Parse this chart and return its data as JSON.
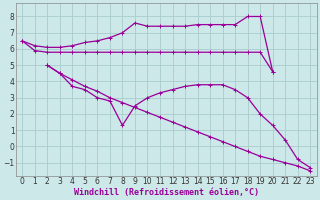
{
  "background_color": "#cde8e8",
  "grid_color": "#aacccc",
  "line_color": "#990099",
  "marker": "+",
  "xlabel": "Windchill (Refroidissement éolien,°C)",
  "xlim": [
    -0.5,
    23.5
  ],
  "ylim": [
    -1.8,
    8.8
  ],
  "yticks": [
    -1,
    0,
    1,
    2,
    3,
    4,
    5,
    6,
    7,
    8
  ],
  "xticks": [
    0,
    1,
    2,
    3,
    4,
    5,
    6,
    7,
    8,
    9,
    10,
    11,
    12,
    13,
    14,
    15,
    16,
    17,
    18,
    19,
    20,
    21,
    22,
    23
  ],
  "line_upper": {
    "x": [
      0,
      1,
      2,
      3,
      4,
      5,
      6,
      7,
      8,
      9,
      10,
      11,
      12,
      13,
      14,
      15,
      16,
      17,
      18,
      19,
      20
    ],
    "y": [
      6.5,
      6.2,
      6.1,
      6.1,
      6.2,
      6.4,
      6.5,
      6.7,
      7.0,
      7.6,
      7.4,
      7.4,
      7.4,
      7.4,
      7.5,
      7.5,
      7.5,
      7.5,
      8.0,
      8.0,
      4.6
    ]
  },
  "line_flat": {
    "x": [
      0,
      1,
      2,
      3,
      4,
      5,
      6,
      7,
      8,
      9,
      10,
      11,
      12,
      13,
      14,
      15,
      16,
      17,
      18,
      19,
      20
    ],
    "y": [
      6.5,
      5.9,
      5.8,
      5.8,
      5.8,
      5.8,
      5.8,
      5.8,
      5.8,
      5.8,
      5.8,
      5.8,
      5.8,
      5.8,
      5.8,
      5.8,
      5.8,
      5.8,
      5.8,
      5.8,
      4.6
    ]
  },
  "line_zigzag": {
    "x": [
      2,
      3,
      4,
      5,
      6,
      7,
      8,
      9,
      10,
      11,
      12,
      13,
      14,
      15,
      16,
      17,
      18,
      19,
      20,
      21,
      22,
      23
    ],
    "y": [
      5.0,
      4.5,
      3.7,
      3.5,
      3.0,
      2.8,
      1.3,
      2.5,
      3.0,
      3.3,
      3.5,
      3.7,
      3.8,
      3.8,
      3.8,
      3.5,
      3.0,
      2.0,
      1.3,
      0.4,
      -0.8,
      -1.3
    ]
  },
  "line_diag": {
    "x": [
      2,
      3,
      4,
      5,
      6,
      7,
      8,
      9,
      10,
      11,
      12,
      13,
      14,
      15,
      16,
      17,
      18,
      19,
      20,
      21,
      22,
      23
    ],
    "y": [
      5.0,
      4.5,
      4.1,
      3.7,
      3.4,
      3.0,
      2.7,
      2.4,
      2.1,
      1.8,
      1.5,
      1.2,
      0.9,
      0.6,
      0.3,
      0.0,
      -0.3,
      -0.6,
      -0.8,
      -1.0,
      -1.2,
      -1.5
    ]
  }
}
